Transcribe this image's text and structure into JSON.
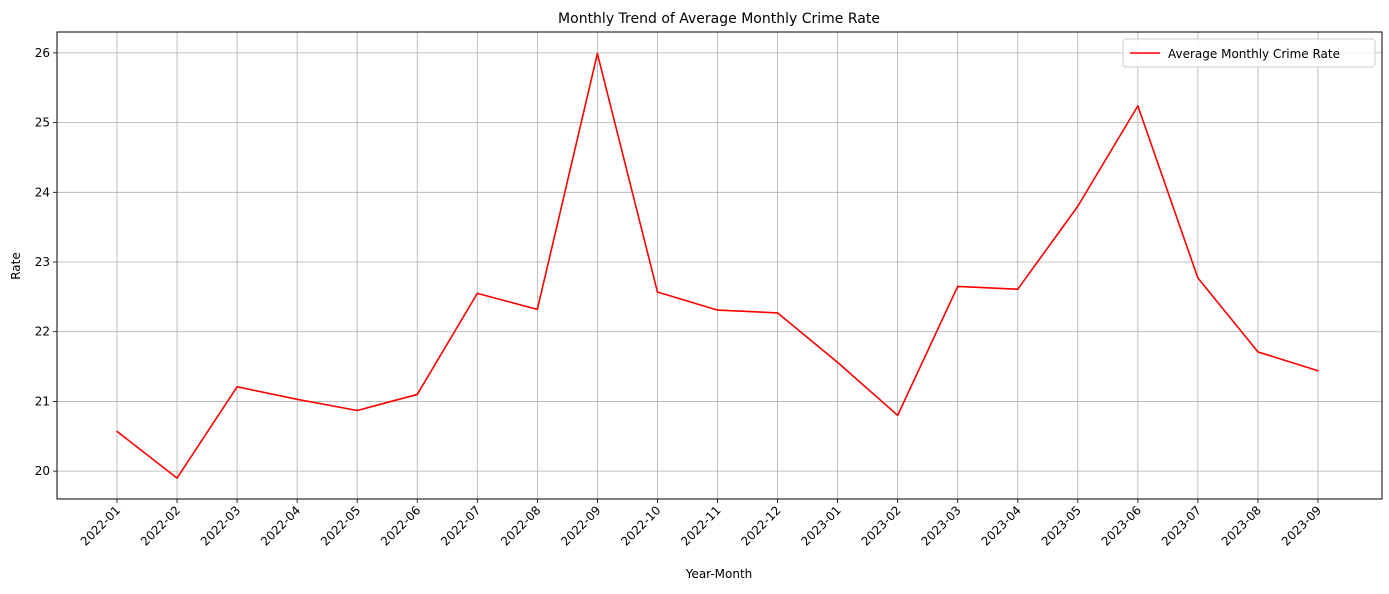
{
  "chart_data": {
    "type": "line",
    "title": "Monthly Trend of Average Monthly Crime Rate",
    "xlabel": "Year-Month",
    "ylabel": "Rate",
    "categories": [
      "2022-01",
      "2022-02",
      "2022-03",
      "2022-04",
      "2022-05",
      "2022-06",
      "2022-07",
      "2022-08",
      "2022-09",
      "2022-10",
      "2022-11",
      "2022-12",
      "2023-01",
      "2023-02",
      "2023-03",
      "2023-04",
      "2023-05",
      "2023-06",
      "2023-07",
      "2023-08",
      "2023-09"
    ],
    "series": [
      {
        "name": "Average Monthly Crime Rate",
        "color": "#ff0000",
        "values": [
          20.57,
          19.9,
          21.21,
          21.03,
          20.87,
          21.1,
          22.55,
          22.32,
          25.99,
          22.57,
          22.31,
          22.27,
          21.56,
          20.8,
          22.65,
          22.61,
          23.8,
          25.24,
          22.77,
          21.71,
          21.44
        ]
      }
    ],
    "yticks": [
      20,
      21,
      22,
      23,
      24,
      25,
      26
    ],
    "ylim": [
      19.6,
      26.3
    ],
    "grid": true,
    "legend_position": "top-right",
    "x_tick_rotation": 45
  }
}
